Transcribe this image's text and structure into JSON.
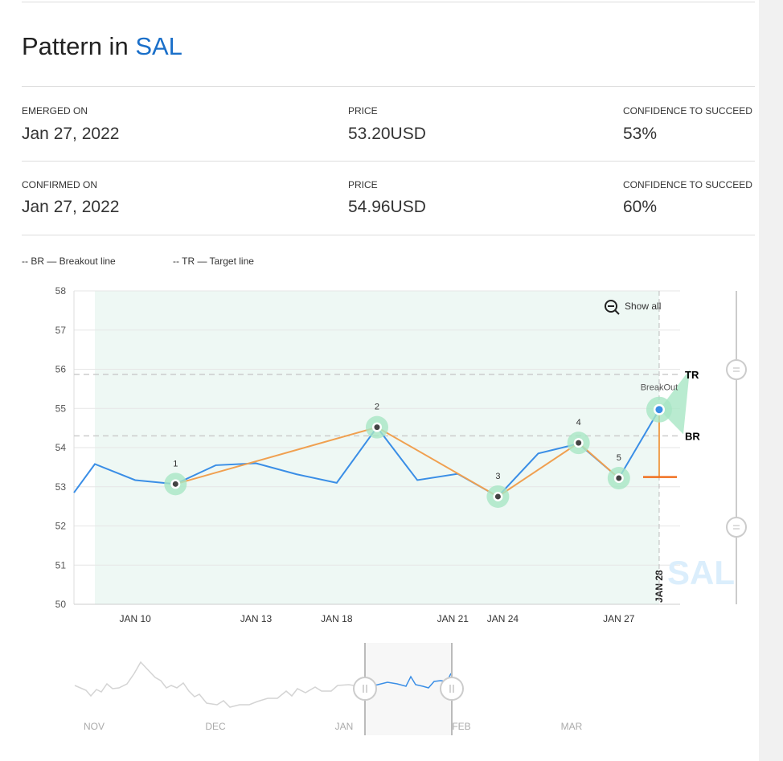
{
  "title": {
    "prefix": "Pattern in ",
    "ticker": "SAL"
  },
  "emerged": {
    "date_label": "EMERGED ON",
    "date": "Jan 27, 2022",
    "price_label": "PRICE",
    "price": "53.20USD",
    "conf_label": "CONFIDENCE TO SUCCEED",
    "conf": "53%"
  },
  "confirmed": {
    "date_label": "CONFIRMED ON",
    "date": "Jan 27, 2022",
    "price_label": "PRICE",
    "price": "54.96USD",
    "conf_label": "CONFIDENCE TO SUCCEED",
    "conf": "60%"
  },
  "legend": {
    "br": "-- BR — Breakout line",
    "tr": "-- TR — Target line"
  },
  "show_all": "Show all",
  "icons": {
    "show_all": "zoom-out-icon",
    "handle": "grip-handle-icon"
  },
  "colors": {
    "accent": "#1a6fc9",
    "price_line": "#3a8ee6",
    "pattern_line": "#f0a050",
    "marker": "#a8e6c4",
    "target": "#f07020"
  },
  "chart_data": {
    "type": "line",
    "ylim": [
      50,
      58
    ],
    "yticks": [
      50,
      51,
      52,
      53,
      54,
      55,
      56,
      57,
      58
    ],
    "x": [
      "JAN 6",
      "JAN 7",
      "JAN 10",
      "JAN 11",
      "JAN 12",
      "JAN 13",
      "JAN 14",
      "JAN 18",
      "JAN 19",
      "JAN 20",
      "JAN 21",
      "JAN 24",
      "JAN 25",
      "JAN 26",
      "JAN 27",
      "JAN 28"
    ],
    "values": [
      52.85,
      53.58,
      53.17,
      53.07,
      53.55,
      53.6,
      53.32,
      53.1,
      54.52,
      53.17,
      53.33,
      52.75,
      53.85,
      54.1,
      53.22,
      54.97
    ],
    "xtick_labels": [
      "JAN 10",
      "JAN 13",
      "JAN 18",
      "JAN 21",
      "JAN 24",
      "JAN 27",
      "JAN 28"
    ],
    "pattern_points": [
      {
        "label": "1",
        "x": "JAN 11",
        "y": 53.07
      },
      {
        "label": "2",
        "x": "JAN 19",
        "y": 54.52
      },
      {
        "label": "3",
        "x": "JAN 24",
        "y": 52.75
      },
      {
        "label": "4",
        "x": "JAN 26",
        "y": 54.12
      },
      {
        "label": "5",
        "x": "JAN 27",
        "y": 53.22
      }
    ],
    "breakout": {
      "label": "BreakOut",
      "x": "JAN 28",
      "y": 54.97
    },
    "target_line": {
      "label": "TR",
      "y": 55.87
    },
    "breakout_line": {
      "label": "BR",
      "y": 54.3
    },
    "stop_level": 53.25,
    "watermark": "SAL",
    "navigator": {
      "labels": [
        "NOV",
        "DEC",
        "JAN",
        "FEB",
        "MAR"
      ]
    }
  }
}
